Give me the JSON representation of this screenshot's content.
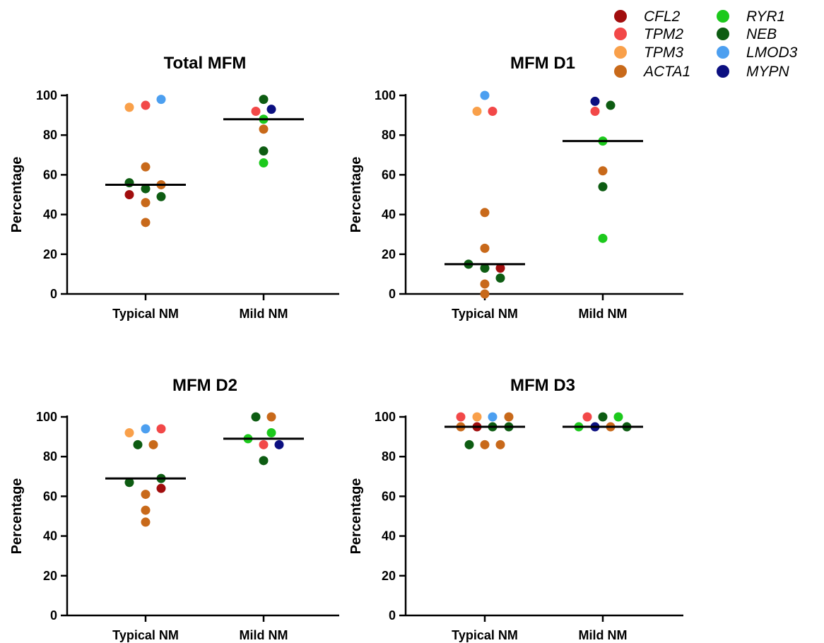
{
  "legend": [
    {
      "name": "CFL2",
      "color": "#a10d0d"
    },
    {
      "name": "TPM2",
      "color": "#f24848"
    },
    {
      "name": "TPM3",
      "color": "#f9a04a"
    },
    {
      "name": "ACTA1",
      "color": "#c8691a"
    },
    {
      "name": "RYR1",
      "color": "#1cc91c"
    },
    {
      "name": "NEB",
      "color": "#0d5c12"
    },
    {
      "name": "LMOD3",
      "color": "#4c9ff0"
    },
    {
      "name": "MYPN",
      "color": "#0b0f80"
    }
  ],
  "chart_data": [
    {
      "type": "scatter",
      "title": "Total MFM",
      "ylabel": "Percentage",
      "categories": [
        "Typical NM",
        "Mild NM"
      ],
      "ylim": [
        0,
        100
      ],
      "yticks": [
        "0",
        "20",
        "40",
        "60",
        "80",
        "100"
      ],
      "medians": [
        55,
        88
      ],
      "points": [
        {
          "group": "Typical NM",
          "gene": "TPM3",
          "y": 94
        },
        {
          "group": "Typical NM",
          "gene": "TPM2",
          "y": 95
        },
        {
          "group": "Typical NM",
          "gene": "LMOD3",
          "y": 98
        },
        {
          "group": "Typical NM",
          "gene": "ACTA1",
          "y": 64
        },
        {
          "group": "Typical NM",
          "gene": "NEB",
          "y": 56
        },
        {
          "group": "Typical NM",
          "gene": "ACTA1",
          "y": 55
        },
        {
          "group": "Typical NM",
          "gene": "NEB",
          "y": 53
        },
        {
          "group": "Typical NM",
          "gene": "CFL2",
          "y": 50
        },
        {
          "group": "Typical NM",
          "gene": "NEB",
          "y": 49
        },
        {
          "group": "Typical NM",
          "gene": "ACTA1",
          "y": 46
        },
        {
          "group": "Typical NM",
          "gene": "ACTA1",
          "y": 36
        },
        {
          "group": "Mild NM",
          "gene": "NEB",
          "y": 98
        },
        {
          "group": "Mild NM",
          "gene": "TPM2",
          "y": 92
        },
        {
          "group": "Mild NM",
          "gene": "MYPN",
          "y": 93
        },
        {
          "group": "Mild NM",
          "gene": "RYR1",
          "y": 88
        },
        {
          "group": "Mild NM",
          "gene": "ACTA1",
          "y": 83
        },
        {
          "group": "Mild NM",
          "gene": "NEB",
          "y": 72
        },
        {
          "group": "Mild NM",
          "gene": "RYR1",
          "y": 66
        }
      ]
    },
    {
      "type": "scatter",
      "title": "MFM D1",
      "ylabel": "Percentage",
      "categories": [
        "Typical NM",
        "Mild NM"
      ],
      "ylim": [
        0,
        100
      ],
      "yticks": [
        "0",
        "20",
        "40",
        "60",
        "80",
        "100"
      ],
      "medians": [
        15,
        77
      ],
      "points": [
        {
          "group": "Typical NM",
          "gene": "LMOD3",
          "y": 100
        },
        {
          "group": "Typical NM",
          "gene": "TPM3",
          "y": 92
        },
        {
          "group": "Typical NM",
          "gene": "TPM2",
          "y": 92
        },
        {
          "group": "Typical NM",
          "gene": "ACTA1",
          "y": 41
        },
        {
          "group": "Typical NM",
          "gene": "ACTA1",
          "y": 23
        },
        {
          "group": "Typical NM",
          "gene": "NEB",
          "y": 15
        },
        {
          "group": "Typical NM",
          "gene": "NEB",
          "y": 13
        },
        {
          "group": "Typical NM",
          "gene": "CFL2",
          "y": 13
        },
        {
          "group": "Typical NM",
          "gene": "NEB",
          "y": 8
        },
        {
          "group": "Typical NM",
          "gene": "ACTA1",
          "y": 5
        },
        {
          "group": "Typical NM",
          "gene": "ACTA1",
          "y": 0
        },
        {
          "group": "Mild NM",
          "gene": "MYPN",
          "y": 97
        },
        {
          "group": "Mild NM",
          "gene": "NEB",
          "y": 95
        },
        {
          "group": "Mild NM",
          "gene": "TPM2",
          "y": 92
        },
        {
          "group": "Mild NM",
          "gene": "RYR1",
          "y": 77
        },
        {
          "group": "Mild NM",
          "gene": "ACTA1",
          "y": 62
        },
        {
          "group": "Mild NM",
          "gene": "NEB",
          "y": 54
        },
        {
          "group": "Mild NM",
          "gene": "RYR1",
          "y": 28
        }
      ]
    },
    {
      "type": "scatter",
      "title": "MFM D2",
      "ylabel": "Percentage",
      "categories": [
        "Typical NM",
        "Mild NM"
      ],
      "ylim": [
        0,
        100
      ],
      "yticks": [
        "0",
        "20",
        "40",
        "60",
        "80",
        "100"
      ],
      "medians": [
        69,
        89
      ],
      "points": [
        {
          "group": "Typical NM",
          "gene": "TPM3",
          "y": 92
        },
        {
          "group": "Typical NM",
          "gene": "LMOD3",
          "y": 94
        },
        {
          "group": "Typical NM",
          "gene": "TPM2",
          "y": 94
        },
        {
          "group": "Typical NM",
          "gene": "NEB",
          "y": 86
        },
        {
          "group": "Typical NM",
          "gene": "ACTA1",
          "y": 86
        },
        {
          "group": "Typical NM",
          "gene": "NEB",
          "y": 69
        },
        {
          "group": "Typical NM",
          "gene": "NEB",
          "y": 67
        },
        {
          "group": "Typical NM",
          "gene": "CFL2",
          "y": 64
        },
        {
          "group": "Typical NM",
          "gene": "ACTA1",
          "y": 61
        },
        {
          "group": "Typical NM",
          "gene": "ACTA1",
          "y": 53
        },
        {
          "group": "Typical NM",
          "gene": "ACTA1",
          "y": 47
        },
        {
          "group": "Mild NM",
          "gene": "NEB",
          "y": 100
        },
        {
          "group": "Mild NM",
          "gene": "ACTA1",
          "y": 100
        },
        {
          "group": "Mild NM",
          "gene": "RYR1",
          "y": 92
        },
        {
          "group": "Mild NM",
          "gene": "RYR1",
          "y": 89
        },
        {
          "group": "Mild NM",
          "gene": "TPM2",
          "y": 86
        },
        {
          "group": "Mild NM",
          "gene": "MYPN",
          "y": 86
        },
        {
          "group": "Mild NM",
          "gene": "NEB",
          "y": 78
        }
      ]
    },
    {
      "type": "scatter",
      "title": "MFM D3",
      "ylabel": "Percentage",
      "categories": [
        "Typical NM",
        "Mild NM"
      ],
      "ylim": [
        0,
        100
      ],
      "yticks": [
        "0",
        "20",
        "40",
        "60",
        "80",
        "100"
      ],
      "medians": [
        95,
        95
      ],
      "points": [
        {
          "group": "Typical NM",
          "gene": "TPM2",
          "y": 100
        },
        {
          "group": "Typical NM",
          "gene": "TPM3",
          "y": 100
        },
        {
          "group": "Typical NM",
          "gene": "LMOD3",
          "y": 100
        },
        {
          "group": "Typical NM",
          "gene": "ACTA1",
          "y": 100
        },
        {
          "group": "Typical NM",
          "gene": "ACTA1",
          "y": 95
        },
        {
          "group": "Typical NM",
          "gene": "CFL2",
          "y": 95
        },
        {
          "group": "Typical NM",
          "gene": "NEB",
          "y": 95
        },
        {
          "group": "Typical NM",
          "gene": "NEB",
          "y": 95
        },
        {
          "group": "Typical NM",
          "gene": "NEB",
          "y": 86
        },
        {
          "group": "Typical NM",
          "gene": "ACTA1",
          "y": 86
        },
        {
          "group": "Typical NM",
          "gene": "ACTA1",
          "y": 86
        },
        {
          "group": "Mild NM",
          "gene": "TPM2",
          "y": 100
        },
        {
          "group": "Mild NM",
          "gene": "NEB",
          "y": 100
        },
        {
          "group": "Mild NM",
          "gene": "RYR1",
          "y": 100
        },
        {
          "group": "Mild NM",
          "gene": "RYR1",
          "y": 95
        },
        {
          "group": "Mild NM",
          "gene": "MYPN",
          "y": 95
        },
        {
          "group": "Mild NM",
          "gene": "ACTA1",
          "y": 95
        },
        {
          "group": "Mild NM",
          "gene": "NEB",
          "y": 95
        }
      ]
    }
  ]
}
